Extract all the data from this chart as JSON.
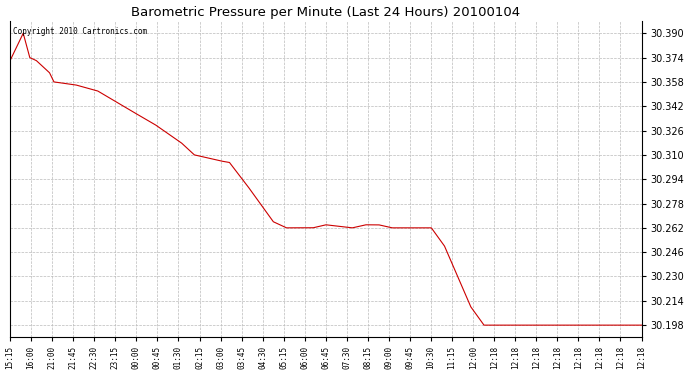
{
  "title": "Barometric Pressure per Minute (Last 24 Hours) 20100104",
  "copyright": "Copyright 2010 Cartronics.com",
  "line_color": "#cc0000",
  "bg_color": "#ffffff",
  "plot_bg_color": "#ffffff",
  "grid_color": "#bbbbbb",
  "ylim": [
    30.19,
    30.398
  ],
  "yticks": [
    30.198,
    30.214,
    30.23,
    30.246,
    30.262,
    30.278,
    30.294,
    30.31,
    30.326,
    30.342,
    30.358,
    30.374,
    30.39
  ],
  "xtick_labels": [
    "15:15",
    "16:00",
    "21:00",
    "21:45",
    "22:30",
    "23:15",
    "00:00",
    "00:45",
    "01:30",
    "02:15",
    "03:00",
    "03:45",
    "04:30",
    "05:15",
    "06:00",
    "06:45",
    "07:30",
    "08:15",
    "09:00",
    "09:45",
    "10:30",
    "11:15",
    "12:00",
    "12:18",
    "12:18",
    "12:18",
    "12:18",
    "12:18",
    "12:18",
    "12:18",
    "12:18"
  ],
  "num_points": 1440,
  "key_points": [
    [
      0,
      30.372
    ],
    [
      30,
      30.39
    ],
    [
      45,
      30.374
    ],
    [
      60,
      30.372
    ],
    [
      90,
      30.364
    ],
    [
      100,
      30.358
    ],
    [
      150,
      30.356
    ],
    [
      200,
      30.352
    ],
    [
      270,
      30.34
    ],
    [
      330,
      30.33
    ],
    [
      390,
      30.318
    ],
    [
      420,
      30.31
    ],
    [
      450,
      30.308
    ],
    [
      480,
      30.306
    ],
    [
      500,
      30.305
    ],
    [
      540,
      30.29
    ],
    [
      570,
      30.278
    ],
    [
      600,
      30.266
    ],
    [
      630,
      30.262
    ],
    [
      660,
      30.262
    ],
    [
      690,
      30.262
    ],
    [
      720,
      30.264
    ],
    [
      750,
      30.263
    ],
    [
      780,
      30.262
    ],
    [
      810,
      30.264
    ],
    [
      840,
      30.264
    ],
    [
      870,
      30.262
    ],
    [
      900,
      30.262
    ],
    [
      930,
      30.262
    ],
    [
      960,
      30.262
    ],
    [
      990,
      30.25
    ],
    [
      1020,
      30.23
    ],
    [
      1050,
      30.21
    ],
    [
      1080,
      30.198
    ],
    [
      1440,
      30.198
    ]
  ]
}
